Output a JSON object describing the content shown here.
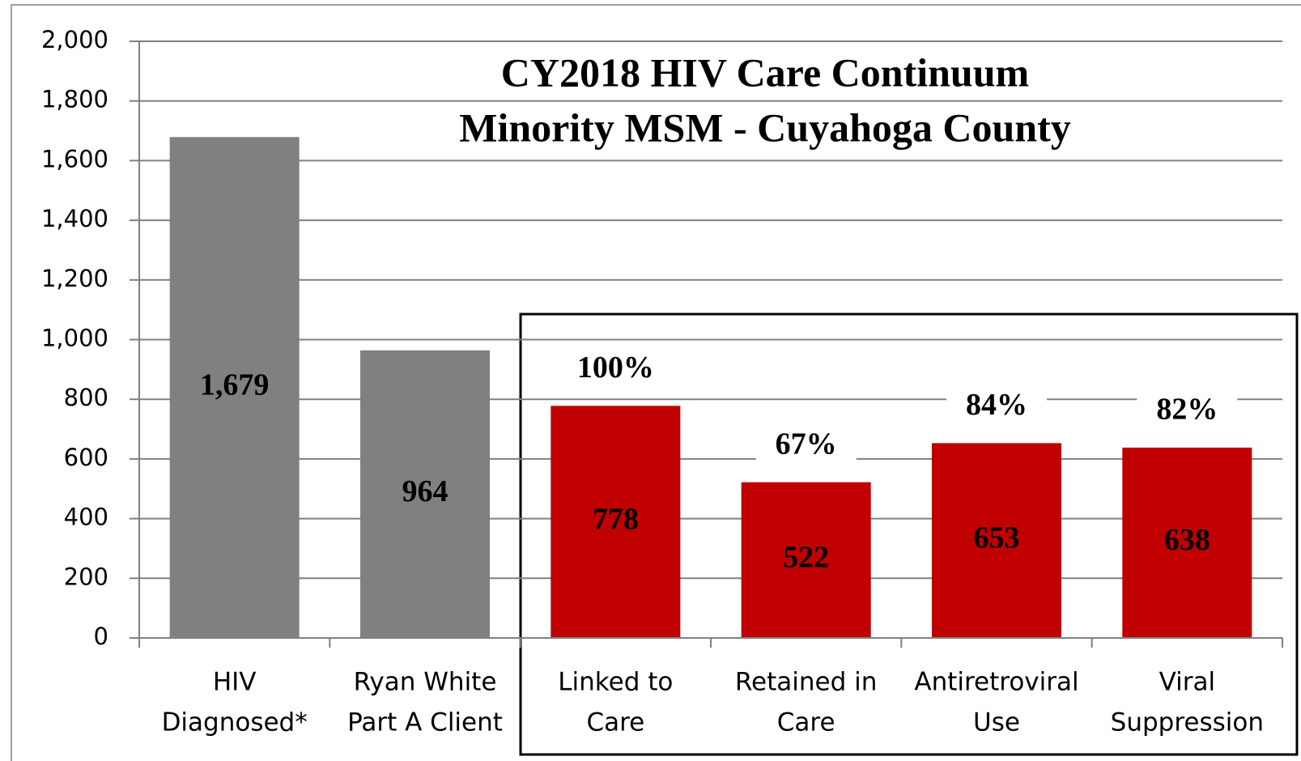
{
  "chart_data": {
    "type": "bar",
    "title": [
      "CY2018 HIV Care Continuum",
      "Minority MSM - Cuyahoga County"
    ],
    "categories": [
      [
        "HIV",
        "Diagnosed*"
      ],
      [
        "Ryan White",
        "Part A Client"
      ],
      [
        "Linked to",
        "Care"
      ],
      [
        "Retained in",
        "Care"
      ],
      [
        "Antiretroviral",
        "Use"
      ],
      [
        "Viral",
        "Suppression"
      ]
    ],
    "values": [
      1679,
      964,
      778,
      522,
      653,
      638
    ],
    "value_labels": [
      "1,679",
      "964",
      "778",
      "522",
      "653",
      "638"
    ],
    "percent_labels": [
      null,
      null,
      "100%",
      "67%",
      "84%",
      "82%"
    ],
    "colors": [
      "#808080",
      "#808080",
      "#c00000",
      "#c00000",
      "#c00000",
      "#c00000"
    ],
    "ylim": [
      0,
      2000
    ],
    "yticks": [
      0,
      200,
      400,
      600,
      800,
      {
        "value": 1000,
        "label": "1,000"
      },
      {
        "value": 1200,
        "label": "1,200"
      },
      {
        "value": 1400,
        "label": "1,400"
      },
      {
        "value": 1600,
        "label": "1,600"
      },
      {
        "value": 1800,
        "label": "1,800"
      },
      {
        "value": 2000,
        "label": "2,000"
      }
    ],
    "grid": true
  }
}
